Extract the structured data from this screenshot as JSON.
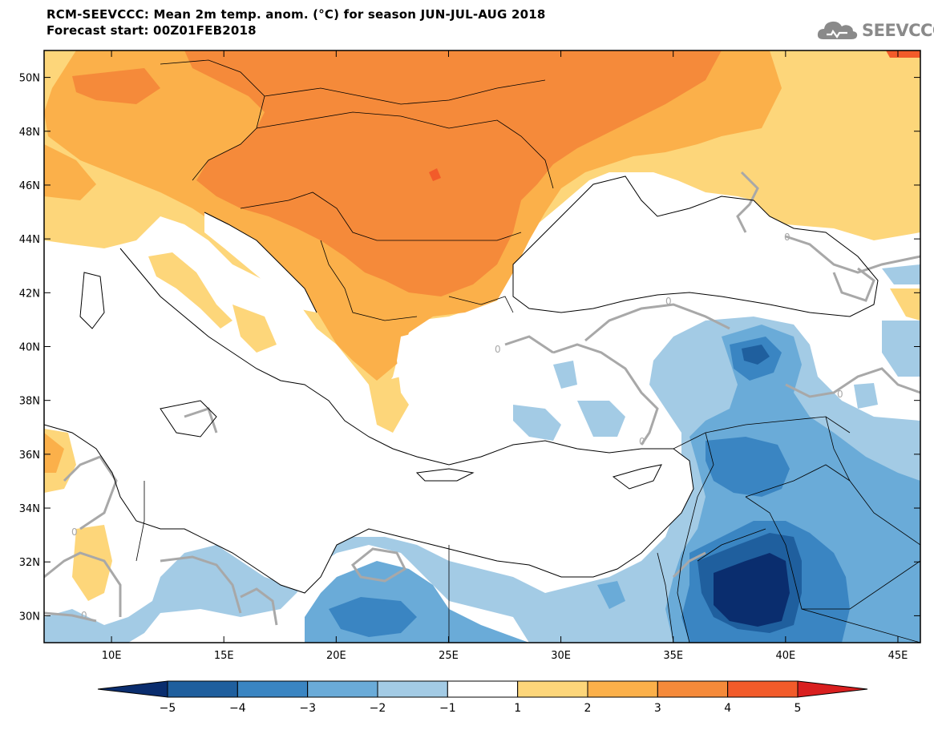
{
  "header": {
    "title": "RCM-SEEVCCC: Mean 2m temp. anom. (°C) for season JUN-JUL-AUG 2018",
    "subtitle": "Forecast start: 00Z01FEB2018"
  },
  "logo": {
    "text": "SEEVCCC",
    "icon": "cloud-icon"
  },
  "map": {
    "lat_labels": [
      "50N",
      "48N",
      "46N",
      "44N",
      "42N",
      "40N",
      "38N",
      "36N",
      "34N",
      "32N",
      "30N"
    ],
    "lat_values": [
      50,
      48,
      46,
      44,
      42,
      40,
      38,
      36,
      34,
      32,
      30
    ],
    "lon_labels": [
      "10E",
      "15E",
      "20E",
      "25E",
      "30E",
      "35E",
      "40E",
      "45E"
    ],
    "lon_values": [
      10,
      15,
      20,
      25,
      30,
      35,
      40,
      45
    ],
    "lon_range": [
      7,
      46
    ],
    "lat_range": [
      29,
      51
    ],
    "contour_label": "0"
  },
  "colorbar": {
    "boundaries": [
      "−5",
      "−4",
      "−3",
      "−2",
      "−1",
      "1",
      "2",
      "3",
      "4",
      "5"
    ],
    "colors": [
      "#0a2d6e",
      "#1f5f9e",
      "#3a85c2",
      "#6aabd8",
      "#a3cbe5",
      "#ffffff",
      "#fdd67a",
      "#fbb04a",
      "#f58a3a",
      "#f25b2a",
      "#d91f1f"
    ]
  }
}
